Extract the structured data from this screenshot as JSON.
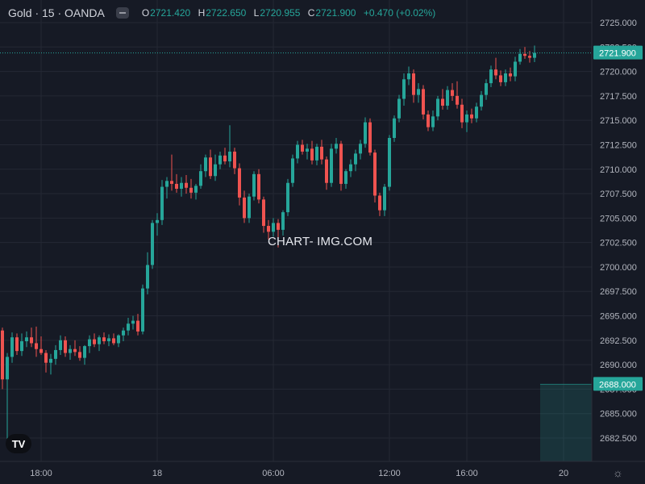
{
  "header": {
    "symbol": "Gold · 15 · OANDA",
    "open_label": "O",
    "open": "2721.420",
    "high_label": "H",
    "high": "2722.650",
    "low_label": "L",
    "low": "2720.955",
    "close_label": "C",
    "close": "2721.900",
    "change": "+0.470 (+0.02%)"
  },
  "watermark": "CHART- IMG.COM",
  "logo_text": "TV",
  "colors": {
    "background": "#161a25",
    "grid": "#242834",
    "up": "#26a69a",
    "down": "#ef5350",
    "axis_text": "#b2b5be"
  },
  "chart_data": {
    "type": "candlestick",
    "title": "",
    "xlabel": "",
    "ylabel": "",
    "ylim": [
      2680.0,
      2727.5
    ],
    "y_ticks": [
      "2725.000",
      "2722.500",
      "2720.000",
      "2717.500",
      "2715.000",
      "2712.500",
      "2710.000",
      "2707.500",
      "2705.000",
      "2702.500",
      "2700.000",
      "2697.500",
      "2695.000",
      "2692.500",
      "2690.000",
      "2687.500",
      "2685.000",
      "2682.500"
    ],
    "x_ticks": [
      {
        "label": "18:00",
        "index": 8
      },
      {
        "label": "18",
        "index": 32
      },
      {
        "label": "06:00",
        "index": 56
      },
      {
        "label": "12:00",
        "index": 80
      },
      {
        "label": "16:00",
        "index": 96
      },
      {
        "label": "20",
        "index": 116
      }
    ],
    "last_price": {
      "label": "2721.900",
      "value": 2721.9
    },
    "marker_price": {
      "label": "2688.000",
      "value": 2688.0
    },
    "candles": [
      [
        2693.5,
        2693.8,
        2687.5,
        2688.5
      ],
      [
        2688.5,
        2691.2,
        2681.5,
        2690.8
      ],
      [
        2690.8,
        2693.3,
        2690.2,
        2692.8
      ],
      [
        2692.8,
        2693.2,
        2691.0,
        2691.4
      ],
      [
        2691.4,
        2693.2,
        2690.9,
        2692.4
      ],
      [
        2692.4,
        2693.4,
        2691.8,
        2692.8
      ],
      [
        2692.8,
        2693.8,
        2691.8,
        2692.2
      ],
      [
        2692.2,
        2693.9,
        2690.8,
        2691.6
      ],
      [
        2691.6,
        2692.9,
        2691.0,
        2691.2
      ],
      [
        2691.2,
        2691.5,
        2689.2,
        2690.2
      ],
      [
        2690.2,
        2691.1,
        2689.0,
        2690.6
      ],
      [
        2690.6,
        2692.0,
        2690.0,
        2691.5
      ],
      [
        2691.5,
        2693.0,
        2691.0,
        2692.5
      ],
      [
        2692.5,
        2692.9,
        2690.8,
        2691.2
      ],
      [
        2691.2,
        2692.0,
        2690.5,
        2691.6
      ],
      [
        2691.6,
        2692.5,
        2690.9,
        2691.3
      ],
      [
        2691.3,
        2691.9,
        2690.4,
        2690.7
      ],
      [
        2690.7,
        2692.0,
        2690.0,
        2691.9
      ],
      [
        2691.9,
        2693.0,
        2691.2,
        2692.6
      ],
      [
        2692.6,
        2693.2,
        2691.8,
        2692.1
      ],
      [
        2692.1,
        2693.0,
        2691.4,
        2692.8
      ],
      [
        2692.8,
        2693.3,
        2692.1,
        2692.4
      ],
      [
        2692.4,
        2693.1,
        2691.9,
        2692.7
      ],
      [
        2692.7,
        2693.2,
        2692.0,
        2692.2
      ],
      [
        2692.2,
        2693.1,
        2691.8,
        2693.0
      ],
      [
        2693.0,
        2693.8,
        2692.4,
        2693.5
      ],
      [
        2693.5,
        2694.8,
        2693.0,
        2694.2
      ],
      [
        2694.2,
        2695.0,
        2693.6,
        2694.5
      ],
      [
        2694.5,
        2695.2,
        2693.0,
        2693.4
      ],
      [
        2693.4,
        2698.2,
        2693.1,
        2697.8
      ],
      [
        2697.8,
        2701.5,
        2697.2,
        2700.2
      ],
      [
        2700.2,
        2704.8,
        2699.8,
        2704.5
      ],
      [
        2704.5,
        2705.5,
        2703.2,
        2704.8
      ],
      [
        2704.8,
        2708.9,
        2704.3,
        2708.2
      ],
      [
        2708.2,
        2709.2,
        2707.0,
        2708.8
      ],
      [
        2708.8,
        2711.5,
        2707.8,
        2708.5
      ],
      [
        2708.5,
        2709.5,
        2707.6,
        2708.0
      ],
      [
        2708.0,
        2709.2,
        2707.2,
        2708.6
      ],
      [
        2708.6,
        2709.4,
        2707.5,
        2708.1
      ],
      [
        2708.1,
        2709.0,
        2707.0,
        2707.6
      ],
      [
        2707.6,
        2708.5,
        2706.9,
        2708.3
      ],
      [
        2708.3,
        2710.5,
        2708.0,
        2709.8
      ],
      [
        2709.8,
        2711.5,
        2709.2,
        2711.2
      ],
      [
        2711.2,
        2712.0,
        2709.0,
        2709.3
      ],
      [
        2709.3,
        2711.5,
        2708.8,
        2710.5
      ],
      [
        2710.5,
        2711.8,
        2710.0,
        2711.4
      ],
      [
        2711.4,
        2712.2,
        2710.5,
        2710.8
      ],
      [
        2710.8,
        2714.5,
        2710.2,
        2711.8
      ],
      [
        2711.8,
        2712.2,
        2709.5,
        2710.1
      ],
      [
        2710.1,
        2710.6,
        2706.3,
        2707.1
      ],
      [
        2707.1,
        2707.8,
        2704.5,
        2705.0
      ],
      [
        2705.0,
        2707.5,
        2704.5,
        2707.2
      ],
      [
        2707.2,
        2709.8,
        2706.8,
        2709.5
      ],
      [
        2709.5,
        2710.0,
        2706.5,
        2706.9
      ],
      [
        2706.9,
        2707.2,
        2703.5,
        2704.2
      ],
      [
        2704.2,
        2704.8,
        2702.8,
        2703.6
      ],
      [
        2703.6,
        2705.0,
        2703.1,
        2704.5
      ],
      [
        2704.5,
        2704.9,
        2702.0,
        2703.8
      ],
      [
        2703.8,
        2705.8,
        2703.2,
        2705.6
      ],
      [
        2705.6,
        2709.0,
        2705.2,
        2708.6
      ],
      [
        2708.6,
        2711.5,
        2708.2,
        2711.1
      ],
      [
        2711.1,
        2712.9,
        2710.6,
        2712.5
      ],
      [
        2712.5,
        2713.0,
        2711.5,
        2711.8
      ],
      [
        2711.8,
        2712.6,
        2711.0,
        2712.1
      ],
      [
        2712.1,
        2712.9,
        2710.5,
        2710.9
      ],
      [
        2710.9,
        2712.6,
        2710.4,
        2712.3
      ],
      [
        2712.3,
        2713.0,
        2710.5,
        2711.0
      ],
      [
        2711.0,
        2711.3,
        2707.9,
        2708.6
      ],
      [
        2708.6,
        2712.6,
        2708.2,
        2712.1
      ],
      [
        2712.1,
        2713.2,
        2711.6,
        2712.6
      ],
      [
        2712.6,
        2712.9,
        2707.8,
        2708.5
      ],
      [
        2708.5,
        2710.0,
        2708.0,
        2709.8
      ],
      [
        2709.8,
        2711.0,
        2709.2,
        2710.5
      ],
      [
        2710.5,
        2712.0,
        2709.8,
        2711.6
      ],
      [
        2711.6,
        2713.0,
        2711.0,
        2712.6
      ],
      [
        2712.6,
        2715.3,
        2712.2,
        2714.8
      ],
      [
        2714.8,
        2715.2,
        2711.4,
        2711.7
      ],
      [
        2711.7,
        2712.0,
        2706.6,
        2707.3
      ],
      [
        2707.3,
        2707.6,
        2705.2,
        2705.8
      ],
      [
        2705.8,
        2708.5,
        2705.2,
        2708.2
      ],
      [
        2708.2,
        2713.5,
        2707.8,
        2713.2
      ],
      [
        2713.2,
        2715.5,
        2712.8,
        2715.2
      ],
      [
        2715.2,
        2717.6,
        2714.8,
        2717.2
      ],
      [
        2717.2,
        2719.8,
        2716.5,
        2719.2
      ],
      [
        2719.2,
        2720.5,
        2718.6,
        2719.8
      ],
      [
        2719.8,
        2720.2,
        2716.8,
        2717.6
      ],
      [
        2717.6,
        2718.8,
        2716.8,
        2718.2
      ],
      [
        2718.2,
        2718.6,
        2715.1,
        2715.6
      ],
      [
        2715.6,
        2716.0,
        2713.9,
        2714.3
      ],
      [
        2714.3,
        2716.0,
        2713.9,
        2715.4
      ],
      [
        2715.4,
        2717.5,
        2715.0,
        2717.2
      ],
      [
        2717.2,
        2718.2,
        2716.1,
        2716.5
      ],
      [
        2716.5,
        2718.5,
        2716.1,
        2718.1
      ],
      [
        2718.1,
        2718.8,
        2717.0,
        2717.5
      ],
      [
        2717.5,
        2719.0,
        2716.2,
        2716.6
      ],
      [
        2716.6,
        2717.2,
        2714.2,
        2714.8
      ],
      [
        2714.8,
        2716.0,
        2713.8,
        2715.6
      ],
      [
        2715.6,
        2716.2,
        2714.7,
        2715.2
      ],
      [
        2715.2,
        2716.8,
        2714.8,
        2716.4
      ],
      [
        2716.4,
        2718.0,
        2716.0,
        2717.6
      ],
      [
        2717.6,
        2719.2,
        2717.1,
        2718.8
      ],
      [
        2718.8,
        2720.6,
        2718.4,
        2720.2
      ],
      [
        2720.2,
        2721.4,
        2719.2,
        2719.6
      ],
      [
        2719.6,
        2720.1,
        2718.5,
        2718.9
      ],
      [
        2718.9,
        2720.2,
        2718.5,
        2719.8
      ],
      [
        2719.8,
        2720.4,
        2719.0,
        2719.5
      ],
      [
        2719.5,
        2721.5,
        2719.0,
        2721.0
      ],
      [
        2721.0,
        2722.3,
        2720.7,
        2721.8
      ],
      [
        2721.8,
        2722.5,
        2721.3,
        2721.6
      ],
      [
        2721.6,
        2722.1,
        2720.9,
        2721.4
      ],
      [
        2721.4,
        2722.65,
        2720.955,
        2721.9
      ]
    ]
  }
}
